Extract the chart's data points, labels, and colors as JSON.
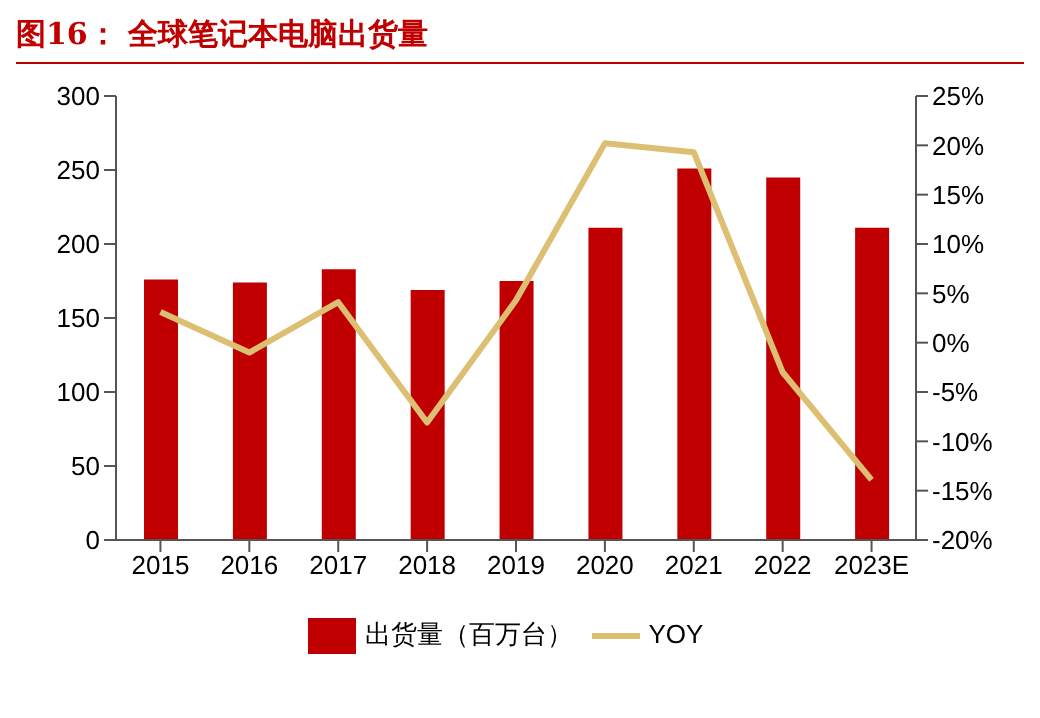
{
  "chart_data": {
    "type": "bar",
    "title": "图16： 全球笔记本电脑出货量",
    "categories": [
      "2015",
      "2016",
      "2017",
      "2018",
      "2019",
      "2020",
      "2021",
      "2022",
      "2023E"
    ],
    "series": [
      {
        "name": "出货量（百万台）",
        "color": "#c00000",
        "values": [
          176,
          174,
          183,
          169,
          175,
          211,
          251,
          245,
          211
        ]
      },
      {
        "name": "YOY",
        "type": "line",
        "axis": "y2",
        "color": "#dcbf72",
        "values": [
          3.1,
          -1.0,
          4.1,
          -8.1,
          4.3,
          20.2,
          19.3,
          -3.0,
          -13.9
        ]
      }
    ],
    "ylim": [
      0,
      300
    ],
    "yticks": [
      0,
      50,
      100,
      150,
      200,
      250,
      300
    ],
    "y2lim": [
      -20,
      25
    ],
    "y2ticks": [
      {
        "value": -20,
        "label": "-20%"
      },
      {
        "value": -15,
        "label": "-15%"
      },
      {
        "value": -10,
        "label": "-10%"
      },
      {
        "value": -5,
        "label": "-5%"
      },
      {
        "value": 0,
        "label": "0%"
      },
      {
        "value": 5,
        "label": "5%"
      },
      {
        "value": 10,
        "label": "10%"
      },
      {
        "value": 15,
        "label": "15%"
      },
      {
        "value": 20,
        "label": "20%"
      },
      {
        "value": 25,
        "label": "25%"
      }
    ],
    "grid": false,
    "legend": "bottom",
    "marker": "none",
    "line_style": "solid"
  }
}
